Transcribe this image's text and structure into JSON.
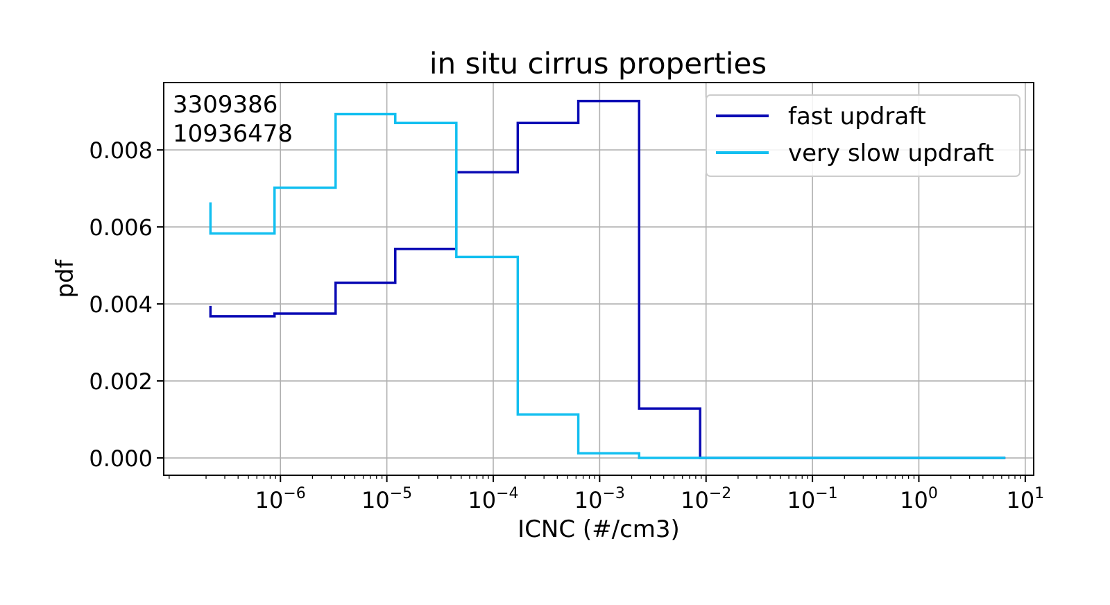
{
  "chart_data": {
    "type": "line",
    "title": "in situ cirrus properties",
    "xlabel": "ICNC (#/cm3)",
    "ylabel": "pdf",
    "xscale": "log",
    "xlim": [
      8e-08,
      12
    ],
    "ylim": [
      -0.00045,
      0.00975
    ],
    "grid": true,
    "legend_position": "top-right",
    "annotations": [
      "3309386",
      "10936478"
    ],
    "x_ticks": [
      {
        "base": "10",
        "exp": "−6",
        "value": 1e-06
      },
      {
        "base": "10",
        "exp": "−5",
        "value": 1e-05
      },
      {
        "base": "10",
        "exp": "−4",
        "value": 0.0001
      },
      {
        "base": "10",
        "exp": "−3",
        "value": 0.001
      },
      {
        "base": "10",
        "exp": "−2",
        "value": 0.01
      },
      {
        "base": "10",
        "exp": "−1",
        "value": 0.1
      },
      {
        "base": "10",
        "exp": "0",
        "value": 1
      },
      {
        "base": "10",
        "exp": "1",
        "value": 10
      }
    ],
    "y_ticks": [
      {
        "label": "0.000",
        "value": 0.0
      },
      {
        "label": "0.002",
        "value": 0.002
      },
      {
        "label": "0.004",
        "value": 0.004
      },
      {
        "label": "0.006",
        "value": 0.006
      },
      {
        "label": "0.008",
        "value": 0.008
      }
    ],
    "bin_edges": [
      2.2e-07,
      8.8e-07,
      3.3e-06,
      1.2e-05,
      4.5e-05,
      0.00017,
      0.00063,
      0.00235,
      0.0088,
      0.033,
      0.12,
      0.46,
      1.7,
      6.5
    ],
    "series": [
      {
        "name": "fast updraft",
        "color": "#0a0ab4",
        "start_value": 0.00395,
        "values": [
          0.00368,
          0.00375,
          0.00455,
          0.00543,
          0.00742,
          0.0087,
          0.00927,
          0.00128,
          0.0,
          0.0,
          0.0,
          0.0,
          0.0
        ]
      },
      {
        "name": "very slow updraft",
        "color": "#12bff0",
        "start_value": 0.00664,
        "values": [
          0.00583,
          0.00702,
          0.00893,
          0.0087,
          0.00522,
          0.00113,
          0.00012,
          0.0,
          0.0,
          0.0,
          0.0,
          0.0,
          0.0
        ]
      }
    ]
  }
}
